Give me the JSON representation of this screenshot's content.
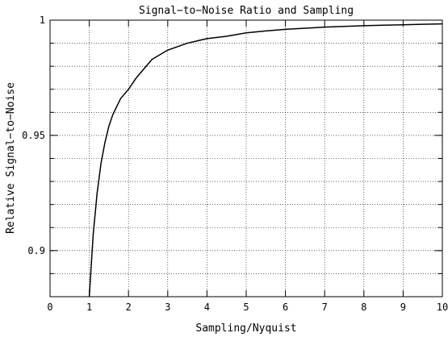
{
  "chart_data": {
    "type": "line",
    "title": "Signal−to−Noise Ratio and Sampling",
    "xlabel": "Sampling/Nyquist",
    "ylabel": "Relative Signal−to−Noise",
    "xlim": [
      0,
      10
    ],
    "ylim": [
      0.88,
      1.0
    ],
    "xticks": [
      0,
      1,
      2,
      3,
      4,
      5,
      6,
      7,
      8,
      9,
      10
    ],
    "xtick_labels": [
      "0",
      "1",
      "2",
      "3",
      "4",
      "5",
      "6",
      "7",
      "8",
      "9",
      "10"
    ],
    "yticks": [
      0.9,
      0.95,
      1.0
    ],
    "ytick_labels": [
      "0.9",
      "0.95",
      "1"
    ],
    "y_minor_step": 0.01,
    "grid": true,
    "grid_style": "dotted",
    "series": [
      {
        "x": [
          1.0,
          1.1,
          1.2,
          1.3,
          1.4,
          1.5,
          1.6,
          1.8,
          2.0,
          2.2,
          2.4,
          2.6,
          2.8,
          3.0,
          3.5,
          4.0,
          4.5,
          5.0,
          5.5,
          6.0,
          6.5,
          7.0,
          7.5,
          8.0,
          8.5,
          9.0,
          9.5,
          10.0
        ],
        "y": [
          0.878,
          0.907,
          0.925,
          0.938,
          0.947,
          0.954,
          0.959,
          0.966,
          0.97,
          0.975,
          0.979,
          0.983,
          0.985,
          0.987,
          0.99,
          0.992,
          0.993,
          0.9945,
          0.9953,
          0.996,
          0.9965,
          0.997,
          0.9973,
          0.9976,
          0.9978,
          0.998,
          0.9982,
          0.9984
        ],
        "color": "#000000"
      }
    ]
  }
}
